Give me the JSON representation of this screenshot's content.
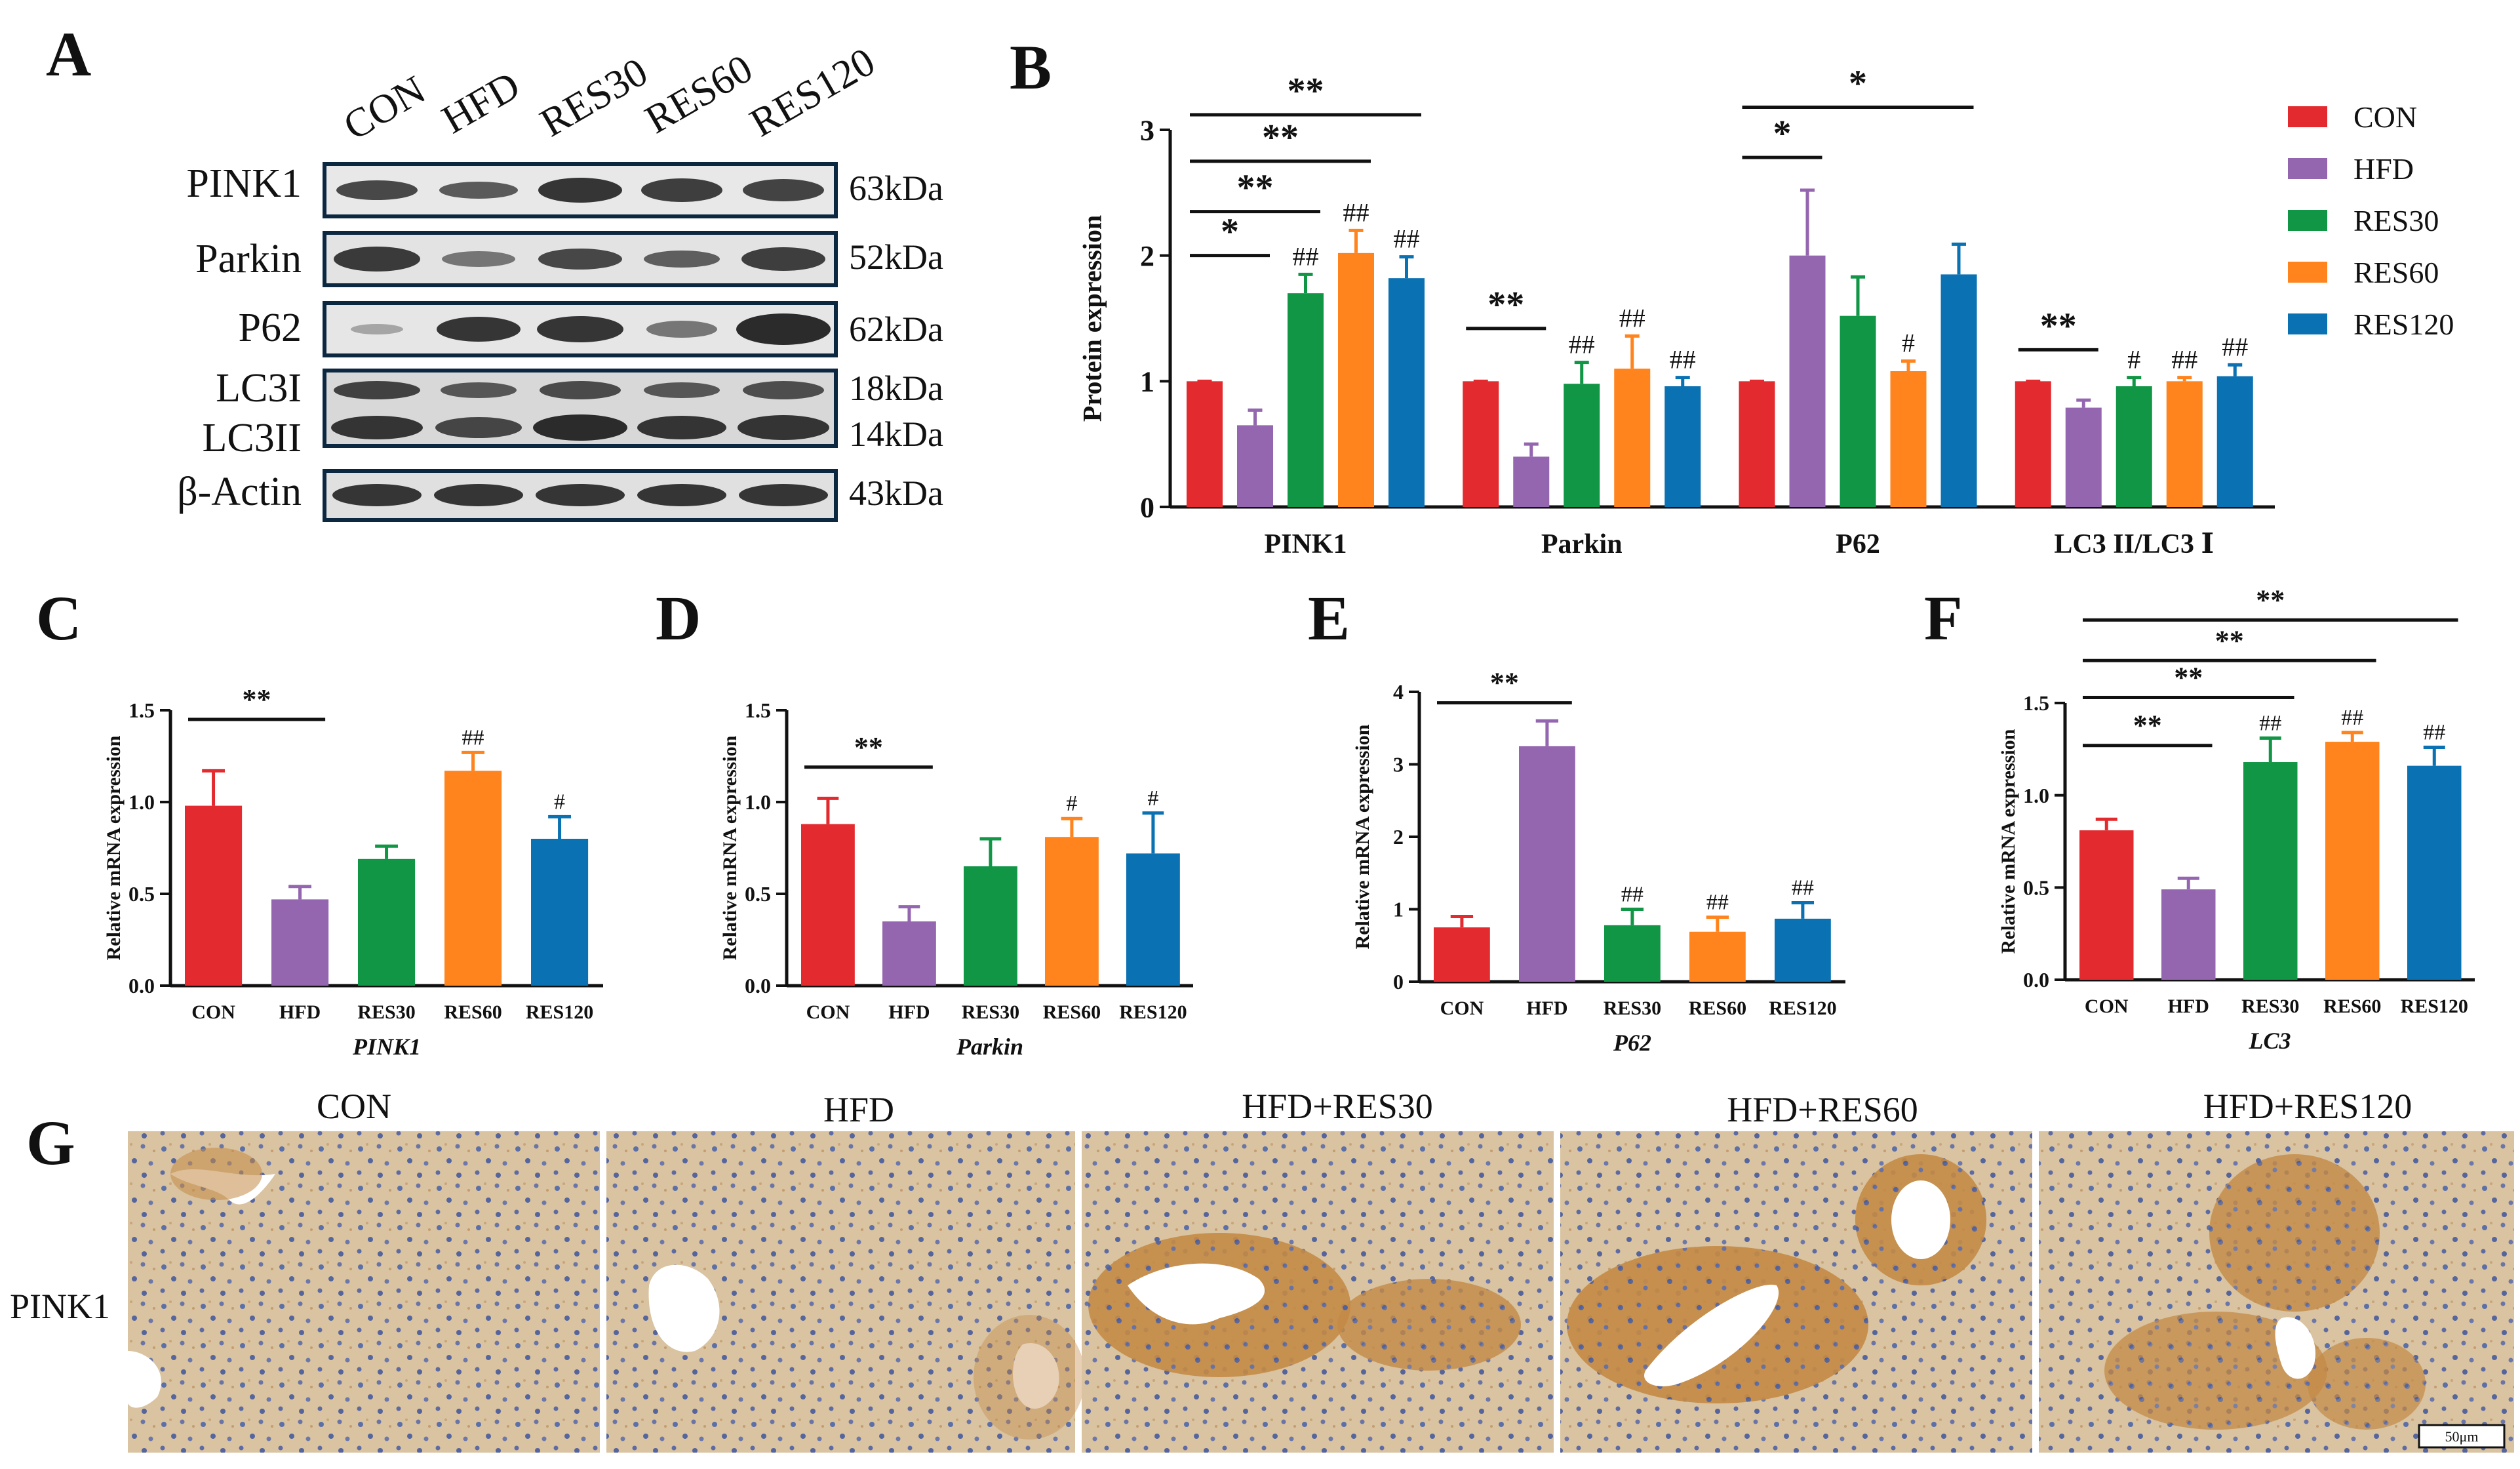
{
  "figure": {
    "panel_letters": [
      "A",
      "B",
      "C",
      "D",
      "E",
      "F",
      "G"
    ],
    "colors": {
      "CON": "#e32b2f",
      "HFD": "#9466b0",
      "RES30": "#119646",
      "RES60": "#ff841d",
      "RES120": "#0a71b2"
    }
  },
  "western_blot": {
    "lanes": [
      "CON",
      "HFD",
      "RES30",
      "RES60",
      "RES120"
    ],
    "bands": [
      {
        "label": "PINK1",
        "kda": "63kDa"
      },
      {
        "label": "Parkin",
        "kda": "52kDa"
      },
      {
        "label": "P62",
        "kda": "62kDa"
      },
      {
        "label": "LC3I",
        "kda": "18kDa"
      },
      {
        "label": "LC3II",
        "kda": "14kDa"
      },
      {
        "label": "β-Actin",
        "kda": "43kDa"
      }
    ]
  },
  "chart_data": [
    {
      "panel": "B",
      "type": "bar",
      "ylabel": "Protein expression",
      "ylim": [
        0,
        3
      ],
      "yticks": [
        "0",
        "1",
        "2",
        "3"
      ],
      "categories": [
        "PINK1",
        "Parkin",
        "P62",
        "LC3 II/LC3 Ⅰ"
      ],
      "legend": [
        "CON",
        "HFD",
        "RES30",
        "RES60",
        "RES120"
      ],
      "legend_position": "right",
      "series": [
        {
          "name": "CON",
          "values": [
            1.0,
            1.0,
            1.0,
            1.0
          ],
          "errors": [
            0.0,
            0.0,
            0.0,
            0.0
          ]
        },
        {
          "name": "HFD",
          "values": [
            0.65,
            0.4,
            2.0,
            0.79
          ],
          "errors": [
            0.12,
            0.1,
            0.52,
            0.06
          ]
        },
        {
          "name": "RES30",
          "values": [
            1.7,
            0.98,
            1.52,
            0.96
          ],
          "errors": [
            0.15,
            0.17,
            0.31,
            0.07
          ]
        },
        {
          "name": "RES60",
          "values": [
            2.02,
            1.1,
            1.08,
            1.0
          ],
          "errors": [
            0.18,
            0.26,
            0.08,
            0.03
          ]
        },
        {
          "name": "RES120",
          "values": [
            1.82,
            0.96,
            1.85,
            1.04
          ],
          "errors": [
            0.17,
            0.07,
            0.24,
            0.09
          ]
        }
      ],
      "marks": [
        {
          "cat": 0,
          "series": 2,
          "text": "##"
        },
        {
          "cat": 0,
          "series": 3,
          "text": "##"
        },
        {
          "cat": 0,
          "series": 4,
          "text": "##"
        },
        {
          "cat": 1,
          "series": 2,
          "text": "##"
        },
        {
          "cat": 1,
          "series": 3,
          "text": "##"
        },
        {
          "cat": 1,
          "series": 4,
          "text": "##"
        },
        {
          "cat": 2,
          "series": 3,
          "text": "#"
        },
        {
          "cat": 3,
          "series": 2,
          "text": "#"
        },
        {
          "cat": 3,
          "series": 3,
          "text": "##"
        },
        {
          "cat": 3,
          "series": 4,
          "text": "##"
        }
      ],
      "brackets": [
        {
          "cat": 0,
          "to": 1,
          "text": "*",
          "level": 2.0
        },
        {
          "cat": 0,
          "to": 2,
          "text": "**",
          "level": 2.35
        },
        {
          "cat": 0,
          "to": 3,
          "text": "**",
          "level": 2.75
        },
        {
          "cat": 0,
          "to": 4,
          "text": "**",
          "level": 3.12
        },
        {
          "cat": 1,
          "to": 1,
          "text": "**",
          "level": 1.42
        },
        {
          "cat": 2,
          "to": 1,
          "text": "*",
          "level": 2.78
        },
        {
          "cat": 2,
          "to": 4,
          "text": "*",
          "level": 3.18
        },
        {
          "cat": 3,
          "to": 1,
          "text": "**",
          "level": 1.25
        }
      ]
    },
    {
      "panel": "C",
      "type": "bar",
      "ylabel": "Relative mRNA expression",
      "xlabel": "PINK1",
      "ylim": [
        0,
        1.5
      ],
      "yticks": [
        "0.0",
        "0.5",
        "1.0",
        "1.5"
      ],
      "categories": [
        "CON",
        "HFD",
        "RES30",
        "RES60",
        "RES120"
      ],
      "values": [
        0.98,
        0.47,
        0.69,
        1.17,
        0.8
      ],
      "errors": [
        0.19,
        0.07,
        0.07,
        0.1,
        0.12
      ],
      "marks": [
        "",
        "",
        "",
        "##",
        "#"
      ],
      "brackets": [
        {
          "from": 0,
          "to": 1,
          "text": "**",
          "level": 1.45
        }
      ]
    },
    {
      "panel": "D",
      "type": "bar",
      "ylabel": "Relative mRNA expression",
      "xlabel": "Parkin",
      "ylim": [
        0,
        1.5
      ],
      "yticks": [
        "0.0",
        "0.5",
        "1.0",
        "1.5"
      ],
      "categories": [
        "CON",
        "HFD",
        "RES30",
        "RES60",
        "RES120"
      ],
      "values": [
        0.88,
        0.35,
        0.65,
        0.81,
        0.72
      ],
      "errors": [
        0.14,
        0.08,
        0.15,
        0.1,
        0.22
      ],
      "marks": [
        "",
        "",
        "",
        "#",
        "#"
      ],
      "brackets": [
        {
          "from": 0,
          "to": 1,
          "text": "**",
          "level": 1.19
        }
      ]
    },
    {
      "panel": "E",
      "type": "bar",
      "ylabel": "Relative mRNA expression",
      "xlabel": "P62",
      "ylim": [
        0,
        4
      ],
      "yticks": [
        "0",
        "1",
        "2",
        "3",
        "4"
      ],
      "categories": [
        "CON",
        "HFD",
        "RES30",
        "RES60",
        "RES120"
      ],
      "values": [
        0.75,
        3.25,
        0.78,
        0.69,
        0.87
      ],
      "errors": [
        0.15,
        0.35,
        0.22,
        0.2,
        0.22
      ],
      "marks": [
        "",
        "",
        "##",
        "##",
        "##"
      ],
      "brackets": [
        {
          "from": 0,
          "to": 1,
          "text": "**",
          "level": 3.85
        }
      ]
    },
    {
      "panel": "F",
      "type": "bar",
      "ylabel": "Relative mRNA expression",
      "xlabel": "LC3",
      "ylim": [
        0,
        1.5
      ],
      "yticks": [
        "0.0",
        "0.5",
        "1.0",
        "1.5"
      ],
      "categories": [
        "CON",
        "HFD",
        "RES30",
        "RES60",
        "RES120"
      ],
      "values": [
        0.81,
        0.49,
        1.18,
        1.29,
        1.16
      ],
      "errors": [
        0.06,
        0.06,
        0.13,
        0.05,
        0.1
      ],
      "marks": [
        "",
        "",
        "##",
        "##",
        "##"
      ],
      "brackets": [
        {
          "from": 0,
          "to": 1,
          "text": "**",
          "level": 1.27
        },
        {
          "from": 0,
          "to": 2,
          "text": "**",
          "level": 1.53
        },
        {
          "from": 0,
          "to": 3,
          "text": "**",
          "level": 1.73
        },
        {
          "from": 0,
          "to": 4,
          "text": "**",
          "level": 1.95
        }
      ]
    }
  ],
  "histology": {
    "row_label": "PINK1",
    "titles": [
      "CON",
      "HFD",
      "HFD+RES30",
      "HFD+RES60",
      "HFD+RES120"
    ],
    "scale_bar": "50μm"
  }
}
